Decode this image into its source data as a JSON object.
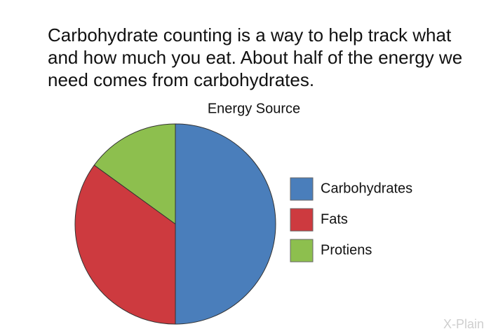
{
  "intro": "Carbohydrate counting is a way to help track what and how much you eat. About half of the energy we need comes from carbohydrates.",
  "watermark": "X-Plain",
  "chart_data": {
    "type": "pie",
    "title": "Energy Source",
    "categories": [
      "Carbohydrates",
      "Fats",
      "Protiens"
    ],
    "values": [
      50,
      35,
      15
    ],
    "colors": [
      "#4a7ebb",
      "#cd3a3f",
      "#8dbf4e"
    ],
    "legend": "right"
  }
}
